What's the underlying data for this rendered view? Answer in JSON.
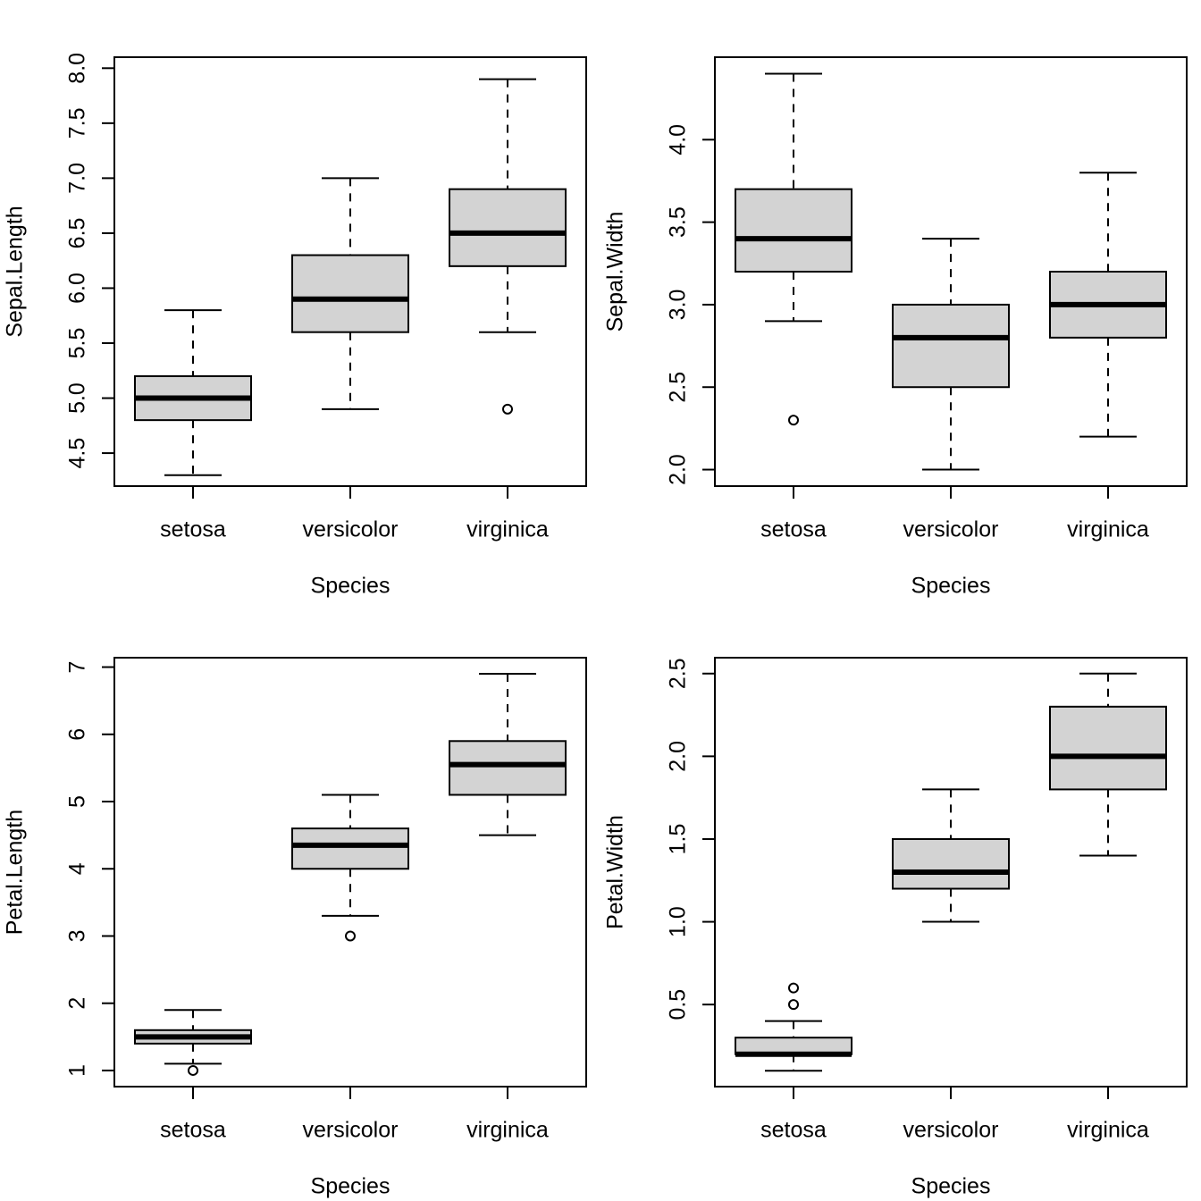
{
  "chart_data": [
    {
      "type": "boxplot",
      "xlabel": "Species",
      "ylabel": "Sepal.Length",
      "categories": [
        "setosa",
        "versicolor",
        "virginica"
      ],
      "ylim": [
        4.2,
        8.1
      ],
      "yticks": [
        4.5,
        5.0,
        5.5,
        6.0,
        6.5,
        7.0,
        7.5,
        8.0
      ],
      "ytick_labels": [
        "4.5",
        "5.0",
        "5.5",
        "6.0",
        "6.5",
        "7.0",
        "7.5",
        "8.0"
      ],
      "boxes": [
        {
          "category": "setosa",
          "whisker_low": 4.3,
          "q1": 4.8,
          "median": 5.0,
          "q3": 5.2,
          "whisker_high": 5.8,
          "outliers": []
        },
        {
          "category": "versicolor",
          "whisker_low": 4.9,
          "q1": 5.6,
          "median": 5.9,
          "q3": 6.3,
          "whisker_high": 7.0,
          "outliers": []
        },
        {
          "category": "virginica",
          "whisker_low": 5.6,
          "q1": 6.2,
          "median": 6.5,
          "q3": 6.9,
          "whisker_high": 7.9,
          "outliers": [
            4.9
          ]
        }
      ]
    },
    {
      "type": "boxplot",
      "xlabel": "Species",
      "ylabel": "Sepal.Width",
      "categories": [
        "setosa",
        "versicolor",
        "virginica"
      ],
      "ylim": [
        1.9,
        4.5
      ],
      "yticks": [
        2.0,
        2.5,
        3.0,
        3.5,
        4.0
      ],
      "ytick_labels": [
        "2.0",
        "2.5",
        "3.0",
        "3.5",
        "4.0"
      ],
      "boxes": [
        {
          "category": "setosa",
          "whisker_low": 2.9,
          "q1": 3.2,
          "median": 3.4,
          "q3": 3.7,
          "whisker_high": 4.4,
          "outliers": [
            2.3
          ]
        },
        {
          "category": "versicolor",
          "whisker_low": 2.0,
          "q1": 2.5,
          "median": 2.8,
          "q3": 3.0,
          "whisker_high": 3.4,
          "outliers": []
        },
        {
          "category": "virginica",
          "whisker_low": 2.2,
          "q1": 2.8,
          "median": 3.0,
          "q3": 3.2,
          "whisker_high": 3.8,
          "outliers": []
        }
      ]
    },
    {
      "type": "boxplot",
      "xlabel": "Species",
      "ylabel": "Petal.Length",
      "categories": [
        "setosa",
        "versicolor",
        "virginica"
      ],
      "ylim": [
        0.76,
        7.14
      ],
      "yticks": [
        1,
        2,
        3,
        4,
        5,
        6,
        7
      ],
      "ytick_labels": [
        "1",
        "2",
        "3",
        "4",
        "5",
        "6",
        "7"
      ],
      "boxes": [
        {
          "category": "setosa",
          "whisker_low": 1.1,
          "q1": 1.4,
          "median": 1.5,
          "q3": 1.6,
          "whisker_high": 1.9,
          "outliers": [
            1.0
          ]
        },
        {
          "category": "versicolor",
          "whisker_low": 3.3,
          "q1": 4.0,
          "median": 4.35,
          "q3": 4.6,
          "whisker_high": 5.1,
          "outliers": [
            3.0
          ]
        },
        {
          "category": "virginica",
          "whisker_low": 4.5,
          "q1": 5.1,
          "median": 5.55,
          "q3": 5.9,
          "whisker_high": 6.9,
          "outliers": []
        }
      ]
    },
    {
      "type": "boxplot",
      "xlabel": "Species",
      "ylabel": "Petal.Width",
      "categories": [
        "setosa",
        "versicolor",
        "virginica"
      ],
      "ylim": [
        0.004,
        2.596
      ],
      "yticks": [
        0.5,
        1.0,
        1.5,
        2.0,
        2.5
      ],
      "ytick_labels": [
        "0.5",
        "1.0",
        "1.5",
        "2.0",
        "2.5"
      ],
      "boxes": [
        {
          "category": "setosa",
          "whisker_low": 0.1,
          "q1": 0.2,
          "median": 0.2,
          "q3": 0.3,
          "whisker_high": 0.4,
          "outliers": [
            0.5,
            0.6
          ]
        },
        {
          "category": "versicolor",
          "whisker_low": 1.0,
          "q1": 1.2,
          "median": 1.3,
          "q3": 1.5,
          "whisker_high": 1.8,
          "outliers": []
        },
        {
          "category": "virginica",
          "whisker_low": 1.4,
          "q1": 1.8,
          "median": 2.0,
          "q3": 2.3,
          "whisker_high": 2.5,
          "outliers": []
        }
      ]
    }
  ],
  "colors": {
    "box_fill": "#d3d3d3",
    "stroke": "#000000",
    "background": "#ffffff"
  }
}
